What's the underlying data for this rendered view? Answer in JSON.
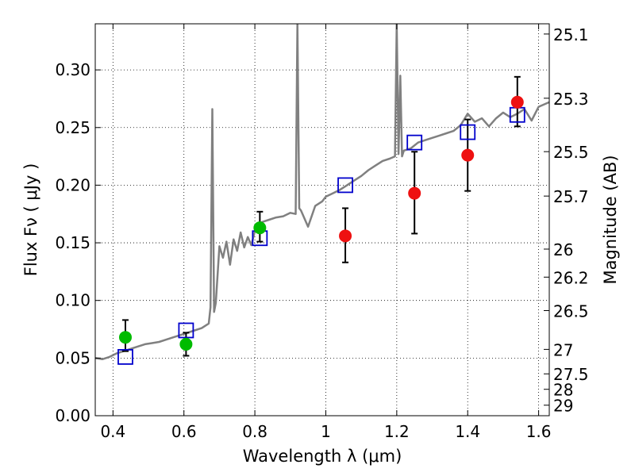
{
  "chart_data": {
    "type": "scatter",
    "title": "",
    "xlabel": "Wavelength  λ (μm)",
    "ylabel": "Flux  Fν  ( μJy )",
    "y2label": "Magnitude (AB)",
    "xlim": [
      0.35,
      1.63
    ],
    "ylim": [
      0.0,
      0.34
    ],
    "xticks": [
      0.4,
      0.6,
      0.8,
      1.0,
      1.2,
      1.4,
      1.6
    ],
    "xtick_labels": [
      "0.4",
      "0.6",
      "0.8",
      "1",
      "1.2",
      "1.4",
      "1.6"
    ],
    "yticks": [
      0.0,
      0.05,
      0.1,
      0.15,
      0.2,
      0.25,
      0.3
    ],
    "ytick_labels": [
      "0.00",
      "0.05",
      "0.10",
      "0.15",
      "0.20",
      "0.25",
      "0.30"
    ],
    "mag_ticks": [
      "25.1",
      "25.3",
      "25.5",
      "25.7",
      "26",
      "26.2",
      "26.5",
      "27",
      "27.5",
      "28",
      "29"
    ],
    "grid": true,
    "legend": "none",
    "colors": {
      "spectrum": "#808080",
      "green_points": "#00bb00",
      "red_points": "#ee1111",
      "model_boxes": "#0000cc",
      "errorbar": "#000000"
    },
    "series": [
      {
        "marker": "green-circle",
        "x": [
          0.435,
          0.606,
          0.814
        ],
        "y": [
          0.068,
          0.062,
          0.163
        ],
        "yerr_low": [
          0.056,
          0.052,
          0.151
        ],
        "yerr_high": [
          0.083,
          0.072,
          0.177
        ]
      },
      {
        "marker": "red-circle",
        "x": [
          1.055,
          1.25,
          1.4,
          1.54
        ],
        "y": [
          0.156,
          0.193,
          0.226,
          0.272
        ],
        "yerr_low": [
          0.133,
          0.158,
          0.195,
          0.251
        ],
        "yerr_high": [
          0.18,
          0.229,
          0.257,
          0.294
        ]
      },
      {
        "marker": "blue-open-square",
        "x": [
          0.435,
          0.606,
          0.814,
          1.055,
          1.25,
          1.4,
          1.54
        ],
        "y": [
          0.051,
          0.074,
          0.154,
          0.2,
          0.237,
          0.246,
          0.261
        ]
      },
      {
        "marker": "gray-line",
        "x": [
          0.35,
          0.37,
          0.39,
          0.41,
          0.43,
          0.45,
          0.47,
          0.49,
          0.51,
          0.53,
          0.55,
          0.57,
          0.59,
          0.61,
          0.63,
          0.65,
          0.67,
          0.675,
          0.68,
          0.685,
          0.69,
          0.7,
          0.71,
          0.72,
          0.73,
          0.74,
          0.75,
          0.76,
          0.77,
          0.78,
          0.79,
          0.8,
          0.82,
          0.84,
          0.86,
          0.88,
          0.9,
          0.915,
          0.92,
          0.925,
          0.93,
          0.95,
          0.97,
          0.99,
          1.0,
          1.02,
          1.04,
          1.06,
          1.08,
          1.1,
          1.12,
          1.14,
          1.16,
          1.18,
          1.195,
          1.2,
          1.205,
          1.21,
          1.215,
          1.22,
          1.24,
          1.26,
          1.28,
          1.3,
          1.32,
          1.34,
          1.36,
          1.38,
          1.4,
          1.42,
          1.44,
          1.46,
          1.48,
          1.5,
          1.52,
          1.54,
          1.56,
          1.58,
          1.6,
          1.63
        ],
        "y": [
          0.05,
          0.049,
          0.051,
          0.054,
          0.056,
          0.058,
          0.06,
          0.062,
          0.063,
          0.064,
          0.066,
          0.068,
          0.07,
          0.072,
          0.074,
          0.076,
          0.08,
          0.094,
          0.266,
          0.09,
          0.098,
          0.147,
          0.137,
          0.151,
          0.131,
          0.153,
          0.143,
          0.159,
          0.146,
          0.155,
          0.148,
          0.16,
          0.168,
          0.17,
          0.172,
          0.173,
          0.176,
          0.175,
          0.34,
          0.18,
          0.178,
          0.164,
          0.182,
          0.186,
          0.19,
          0.193,
          0.196,
          0.2,
          0.204,
          0.208,
          0.213,
          0.217,
          0.221,
          0.223,
          0.225,
          0.34,
          0.227,
          0.295,
          0.225,
          0.23,
          0.232,
          0.237,
          0.239,
          0.241,
          0.243,
          0.245,
          0.247,
          0.252,
          0.262,
          0.255,
          0.258,
          0.251,
          0.258,
          0.263,
          0.259,
          0.262,
          0.266,
          0.256,
          0.268,
          0.272
        ]
      }
    ]
  }
}
